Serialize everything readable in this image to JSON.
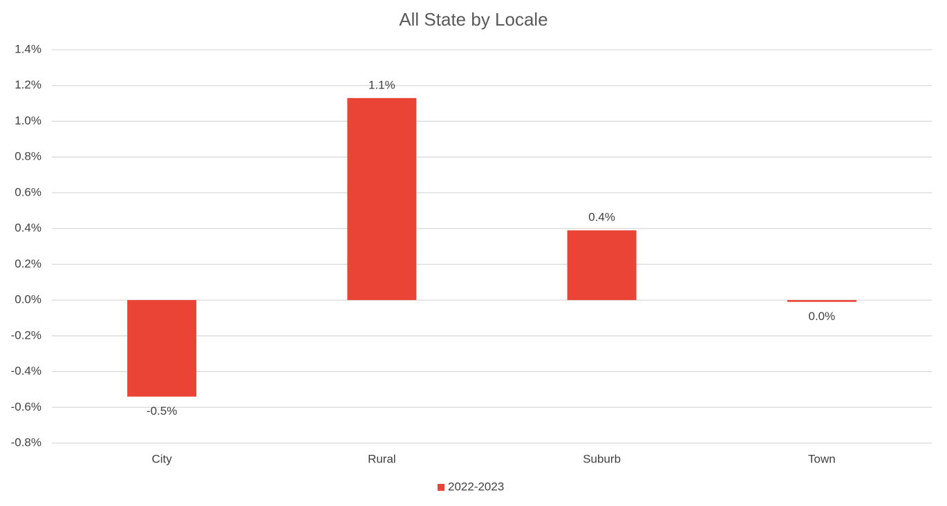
{
  "chart_data": {
    "type": "bar",
    "title": "All State by Locale",
    "categories": [
      "City",
      "Rural",
      "Suburb",
      "Town"
    ],
    "series": [
      {
        "name": "2022-2023",
        "color": "#e94436",
        "values": [
          -0.54,
          1.13,
          0.39,
          -0.01
        ],
        "value_labels": [
          "-0.5%",
          "1.1%",
          "0.4%",
          "0.0%"
        ]
      }
    ],
    "ylim": [
      -0.8,
      1.4
    ],
    "yticks": [
      {
        "value": -0.8,
        "label": "-0.8%"
      },
      {
        "value": -0.6,
        "label": "-0.6%"
      },
      {
        "value": -0.4,
        "label": "-0.4%"
      },
      {
        "value": -0.2,
        "label": "-0.2%"
      },
      {
        "value": 0,
        "label": "0.0%"
      },
      {
        "value": 0.2,
        "label": "0.2%"
      },
      {
        "value": 0.4,
        "label": "0.4%"
      },
      {
        "value": 0.6,
        "label": "0.6%"
      },
      {
        "value": 0.8,
        "label": "0.8%"
      },
      {
        "value": 1.0,
        "label": "1.0%"
      },
      {
        "value": 1.2,
        "label": "1.2%"
      },
      {
        "value": 1.4,
        "label": "1.4%"
      }
    ],
    "grid": true,
    "legend": "bottom"
  }
}
